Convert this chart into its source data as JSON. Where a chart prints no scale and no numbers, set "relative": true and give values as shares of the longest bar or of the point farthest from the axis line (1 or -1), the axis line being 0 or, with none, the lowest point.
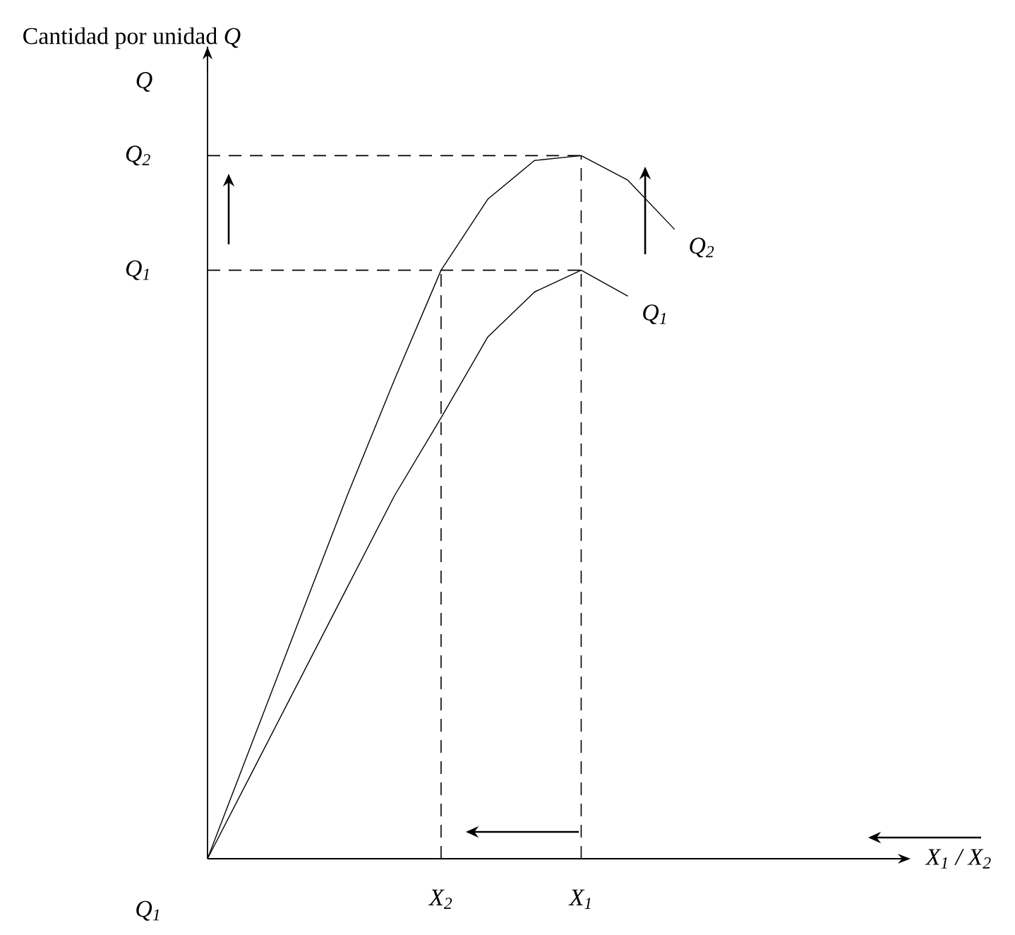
{
  "chart_data": {
    "type": "line",
    "relative": true,
    "title": "Cantidad por unidad  *Q*",
    "ylabel": "Q",
    "xlabel": "X$_{1}$ / X$_{2}$",
    "categories": [
      null,
      null,
      null,
      null,
      null,
      "X$_{2}$",
      null,
      null,
      "X$_{1}$",
      null,
      null,
      null,
      null,
      null,
      null
    ],
    "series": [
      {
        "name": "Q$_{2}$",
        "color": "#000000",
        "values": [
          0,
          0.173,
          0.346,
          0.518,
          0.681,
          0.837,
          0.938,
          0.993,
          1.0,
          0.965,
          0.895,
          null,
          null,
          null,
          null
        ]
      },
      {
        "name": "Q$_{1}$",
        "color": "#000000",
        "values": [
          0,
          0.129,
          0.258,
          0.387,
          0.516,
          0.627,
          0.742,
          0.806,
          0.837,
          0.8,
          null,
          null,
          null,
          null,
          null
        ]
      }
    ],
    "ref_lines": [
      {
        "axis": "y",
        "value": 1.0,
        "label": "Q$_{2}$",
        "line_style": "dashed",
        "color": "#000000"
      },
      {
        "axis": "y",
        "value": 0.837,
        "label": "Q$_{1}$",
        "line_style": "dashed",
        "color": "#000000"
      },
      {
        "axis": "x",
        "value": "X$_{2}$",
        "line_style": "dashed",
        "color": "#000000"
      },
      {
        "axis": "x",
        "value": "X$_{1}$",
        "line_style": "dashed",
        "color": "#000000"
      }
    ],
    "annotations": [
      "Q$_{1}$"
    ]
  }
}
